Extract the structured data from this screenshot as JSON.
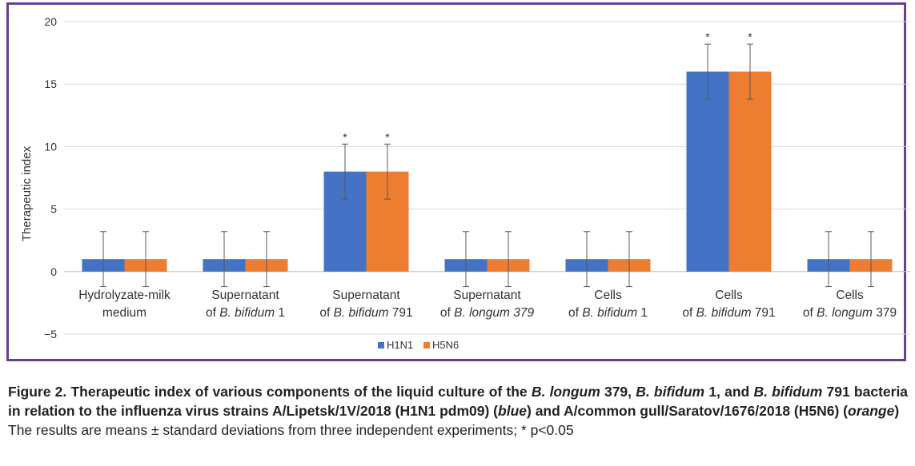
{
  "chart_data": {
    "type": "bar",
    "ylabel": "Therapeutic index",
    "ylim": [
      -5,
      20
    ],
    "yticks": [
      -5,
      0,
      5,
      10,
      15,
      20
    ],
    "ytick_labels": [
      "−5",
      "0",
      "5",
      "10",
      "15",
      "20"
    ],
    "grid": true,
    "legend_position": "bottom",
    "categories": [
      {
        "line1": [
          "Hydrolyzate-milk"
        ],
        "line2": [
          "medium"
        ]
      },
      {
        "line1": [
          "Supernatant"
        ],
        "line2": [
          "of ",
          "B. bifidum",
          " 1"
        ]
      },
      {
        "line1": [
          "Supernatant"
        ],
        "line2": [
          "of ",
          "B. bifidum",
          " 791"
        ]
      },
      {
        "line1": [
          "Supernatant"
        ],
        "line2": [
          "of ",
          "B. longum 379"
        ]
      },
      {
        "line1": [
          "Cells"
        ],
        "line2": [
          "of ",
          "B. bifidum",
          " 1"
        ]
      },
      {
        "line1": [
          "Cells"
        ],
        "line2": [
          "of ",
          "B. bifidum",
          " 791"
        ]
      },
      {
        "line1": [
          "Cells"
        ],
        "line2": [
          "of ",
          "B. longum",
          " 379"
        ]
      }
    ],
    "series": [
      {
        "name": "H1N1",
        "color": "#4472c4",
        "values": [
          1,
          1,
          8,
          1,
          1,
          16,
          1
        ],
        "errors": [
          2.2,
          2.2,
          2.2,
          2.2,
          2.2,
          2.2,
          2.2
        ],
        "significance": [
          "",
          "",
          "*",
          "",
          "",
          "*",
          ""
        ]
      },
      {
        "name": "H5N6",
        "color": "#ed7d31",
        "values": [
          1,
          1,
          8,
          1,
          1,
          16,
          1
        ],
        "errors": [
          2.2,
          2.2,
          2.2,
          2.2,
          2.2,
          2.2,
          2.2
        ],
        "significance": [
          "",
          "",
          "*",
          "",
          "",
          "*",
          ""
        ]
      }
    ]
  },
  "caption": {
    "part1": "Figure 2. Therapeutic index of various components of the liquid culture of the ",
    "species1": "B. longum",
    "part2": " 379, ",
    "species2": "B. bifidum",
    "part3": " 1, and ",
    "species3": "B. bifidum",
    "part4": " 791 bacteria in relation to the influenza virus strains A/Lipetsk/1V/2018 (H1N1 pdm09) (",
    "color1": "blue",
    "part5": ") and A/common gull/Saratov/1676/2018 (H5N6) (",
    "color2": "orange",
    "part6": ")",
    "note": "The results are means ± standard deviations from three independent experiments; * p<0.05"
  }
}
